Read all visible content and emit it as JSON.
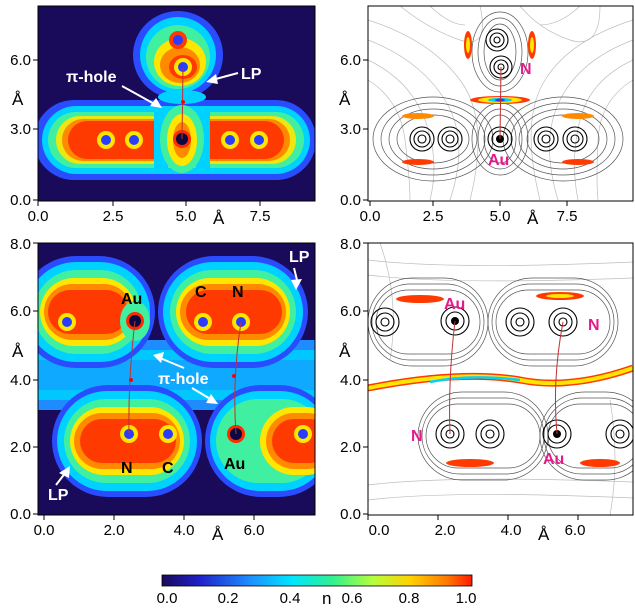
{
  "panels": {
    "top_left": {
      "x_ticks": [
        "0.0",
        "2.5",
        "5.0",
        "7.5"
      ],
      "y_ticks": [
        "0.0",
        "3.0",
        "6.0"
      ],
      "x_unit": "Å",
      "y_unit": "Å",
      "annotations": [
        "π-hole",
        "LP"
      ]
    },
    "top_right": {
      "x_ticks": [
        "0.0",
        "2.5",
        "5.0",
        "7.5"
      ],
      "y_ticks": [
        "0.0",
        "3.0",
        "6.0"
      ],
      "x_unit": "Å",
      "y_unit": "Å",
      "atom_labels": [
        "N",
        "Au"
      ]
    },
    "bottom_left": {
      "x_ticks": [
        "0.0",
        "2.0",
        "4.0",
        "6.0"
      ],
      "y_ticks": [
        "0.0",
        "2.0",
        "4.0",
        "6.0",
        "8.0"
      ],
      "x_unit": "Å",
      "y_unit": "Å",
      "annotations": [
        "LP",
        "π-hole",
        "LP"
      ],
      "atom_labels": [
        "Au",
        "C",
        "N",
        "N",
        "C",
        "Au"
      ]
    },
    "bottom_right": {
      "x_ticks": [
        "0.0",
        "2.0",
        "4.0",
        "6.0"
      ],
      "y_ticks": [
        "0.0",
        "2.0",
        "4.0",
        "6.0",
        "8.0"
      ],
      "x_unit": "Å",
      "y_unit": "Å",
      "atom_labels": [
        "Au",
        "N",
        "N",
        "Au"
      ]
    }
  },
  "colorbar": {
    "ticks": [
      "0.0",
      "0.2",
      "0.4",
      "0.6",
      "0.8",
      "1.0"
    ],
    "label": "n",
    "colors": [
      "#1a0a5a",
      "#2a3cff",
      "#00c8ff",
      "#3cff80",
      "#ffe600",
      "#ff2a00"
    ]
  }
}
